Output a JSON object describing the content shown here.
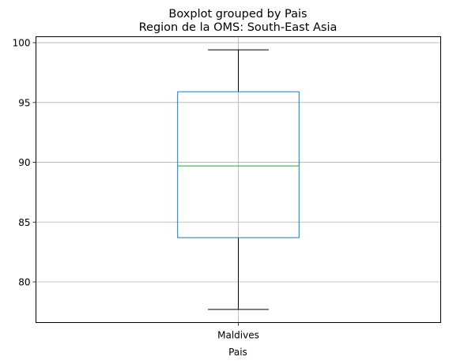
{
  "chart_data": {
    "type": "box",
    "suptitle": "Boxplot grouped by Pais",
    "title": "Region de la OMS: South-East Asia",
    "xlabel": "Pais",
    "ylabel": "",
    "categories": [
      "Maldives"
    ],
    "boxes": [
      {
        "category": "Maldives",
        "whisker_low": 77.7,
        "q1": 83.7,
        "median": 89.7,
        "q3": 95.9,
        "whisker_high": 99.4
      }
    ],
    "ylim": [
      76.6,
      100.5
    ],
    "yticks": [
      80,
      85,
      90,
      95,
      100
    ],
    "grid": true,
    "colors": {
      "box": "#1f77b4",
      "median": "#2ca02c",
      "whisker": "#000000",
      "grid": "#b0b0b0"
    }
  }
}
